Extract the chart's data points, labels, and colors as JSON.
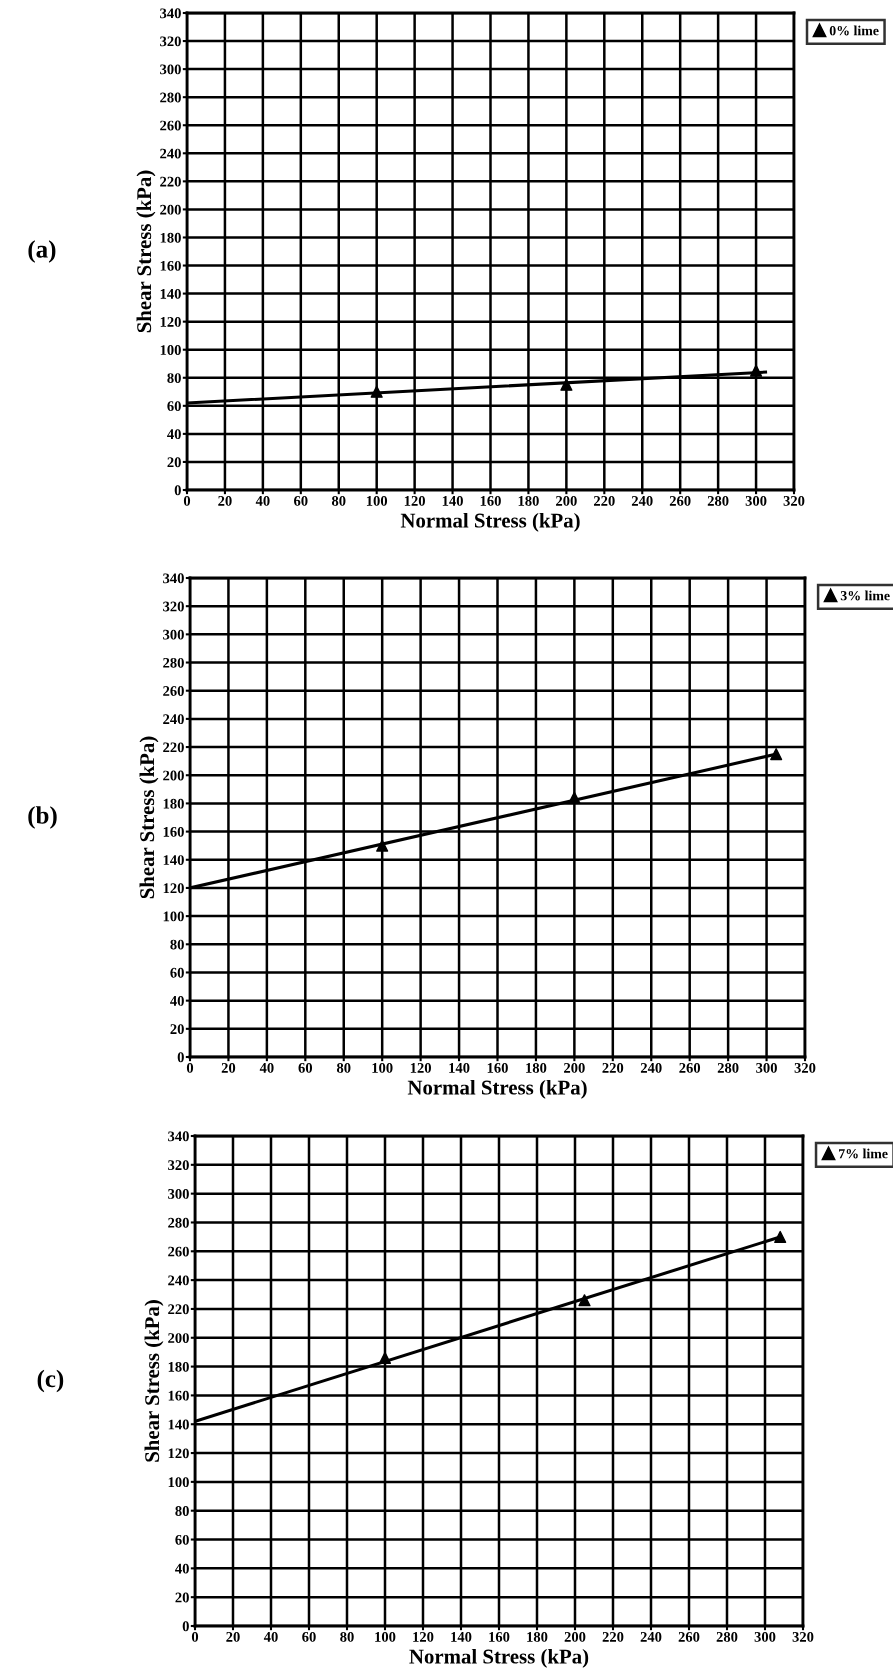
{
  "chart_data": [
    {
      "type": "scatter",
      "xlabel": "Normal Stress (kPa)",
      "ylabel": "Shear Stress (kPa)",
      "annotations": [
        "(a)"
      ],
      "xlim": [
        0,
        320
      ],
      "ylim": [
        0,
        340
      ],
      "xticks": [
        0,
        20,
        40,
        60,
        80,
        100,
        120,
        140,
        160,
        180,
        200,
        220,
        240,
        260,
        280,
        300,
        320
      ],
      "yticks": [
        0,
        20,
        40,
        60,
        80,
        100,
        120,
        140,
        160,
        180,
        200,
        220,
        240,
        260,
        280,
        300,
        320,
        340
      ],
      "grid": true,
      "legend": "top right",
      "series": [
        {
          "name": "0% lime",
          "color": "#000000",
          "marker": "triangle",
          "x": [
            100,
            200,
            300
          ],
          "values": [
            70,
            75,
            85
          ]
        },
        {
          "type": "line",
          "color": "#000000",
          "marker": "none",
          "x": [
            0,
            305
          ],
          "values": [
            62,
            84
          ]
        }
      ]
    },
    {
      "type": "scatter",
      "xlabel": "Normal Stress (kPa)",
      "ylabel": "Shear Stress (kPa)",
      "annotations": [
        "(b)"
      ],
      "xlim": [
        0,
        320
      ],
      "ylim": [
        0,
        340
      ],
      "xticks": [
        0,
        20,
        40,
        60,
        80,
        100,
        120,
        140,
        160,
        180,
        200,
        220,
        240,
        260,
        280,
        300,
        320
      ],
      "yticks": [
        0,
        20,
        40,
        60,
        80,
        100,
        120,
        140,
        160,
        180,
        200,
        220,
        240,
        260,
        280,
        300,
        320,
        340
      ],
      "grid": true,
      "legend": "top right",
      "series": [
        {
          "name": "3% lime",
          "color": "#000000",
          "marker": "triangle",
          "x": [
            100,
            200,
            305
          ],
          "values": [
            150,
            184,
            215
          ]
        },
        {
          "type": "line",
          "color": "#000000",
          "marker": "none",
          "x": [
            0,
            305
          ],
          "values": [
            120,
            215
          ]
        }
      ]
    },
    {
      "type": "scatter",
      "xlabel": "Normal Stress (kPa)",
      "ylabel": "Shear Stress (kPa)",
      "annotations": [
        "(c)"
      ],
      "xlim": [
        0,
        320
      ],
      "ylim": [
        0,
        340
      ],
      "xticks": [
        0,
        20,
        40,
        60,
        80,
        100,
        120,
        140,
        160,
        180,
        200,
        220,
        240,
        260,
        280,
        300,
        320
      ],
      "yticks": [
        0,
        20,
        40,
        60,
        80,
        100,
        120,
        140,
        160,
        180,
        200,
        220,
        240,
        260,
        280,
        300,
        320,
        340
      ],
      "grid": true,
      "legend": "top right",
      "series": [
        {
          "name": "7% lime",
          "color": "#000000",
          "marker": "triangle",
          "x": [
            100,
            205,
            308
          ],
          "values": [
            186,
            226,
            270
          ]
        },
        {
          "type": "line",
          "color": "#000000",
          "marker": "none",
          "x": [
            0,
            308
          ],
          "values": [
            142,
            270
          ]
        }
      ]
    }
  ]
}
